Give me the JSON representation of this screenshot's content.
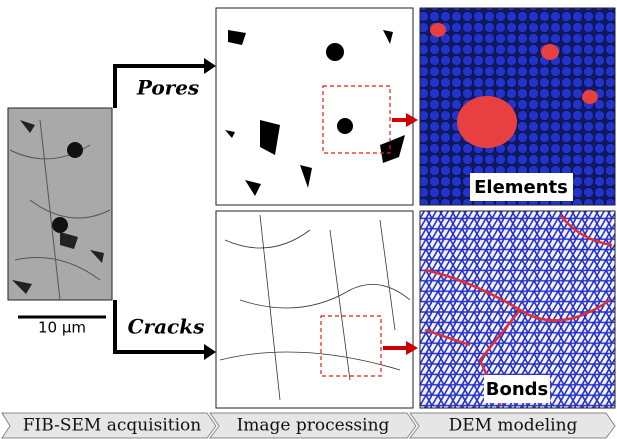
{
  "branches": {
    "pores": "Pores",
    "cracks": "Cracks"
  },
  "scale_bar": "10 μm",
  "dem_labels": {
    "elements": "Elements",
    "bonds": "Bonds"
  },
  "pipeline": [
    "FIB-SEM acquisition",
    "Image processing",
    "DEM modeling"
  ]
}
